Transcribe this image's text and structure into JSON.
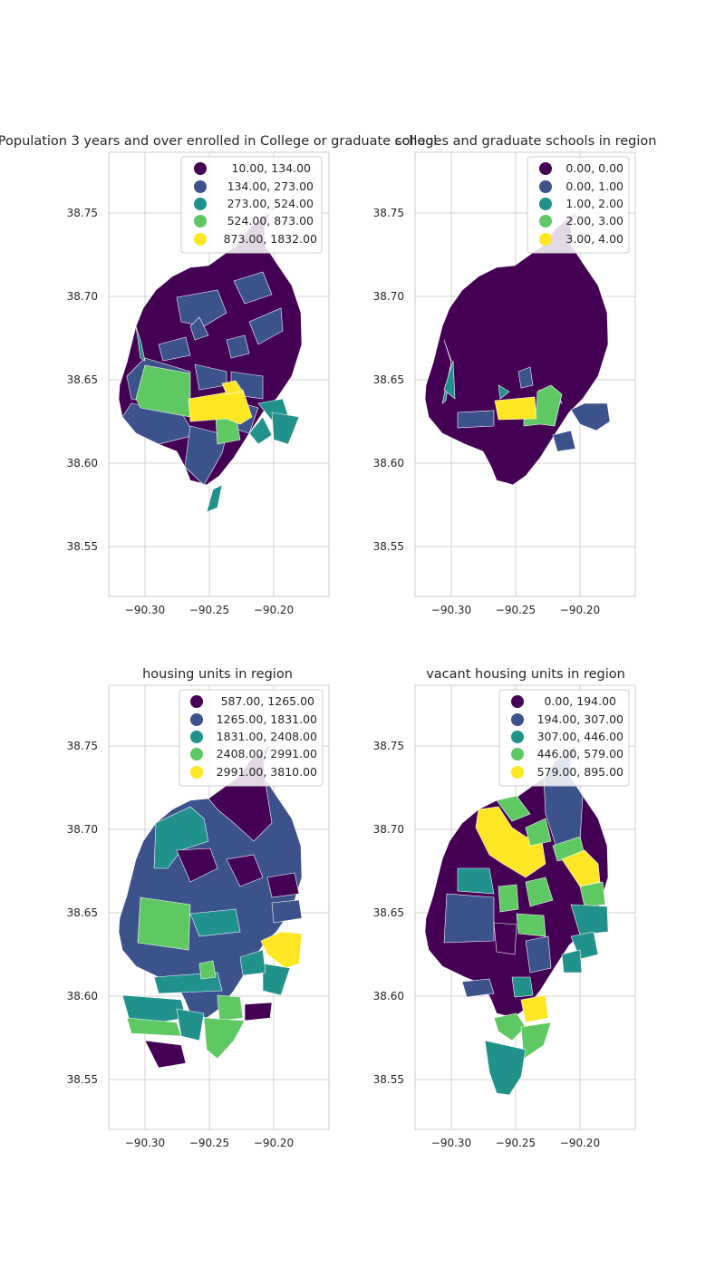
{
  "colors": [
    "#440154",
    "#3b528b",
    "#21918c",
    "#5ec962",
    "#fde725"
  ],
  "panels": [
    {
      "title": "Population 3 years and over enrolled in College or graduate school",
      "legend": [
        "10.00,  134.00",
        "134.00,  273.00",
        "273.00,  524.00",
        "524.00,  873.00",
        "873.00, 1832.00"
      ],
      "xticks": [
        "−90.30",
        "−90.25",
        "−90.20"
      ],
      "yticks": [
        "38.75",
        "38.70",
        "38.65",
        "38.60",
        "38.55"
      ]
    },
    {
      "title": "colleges and graduate schools in region",
      "legend": [
        "0.00, 0.00",
        "0.00, 1.00",
        "1.00, 2.00",
        "2.00, 3.00",
        "3.00, 4.00"
      ],
      "xticks": [
        "−90.30",
        "−90.25",
        "−90.20"
      ],
      "yticks": [
        "38.75",
        "38.70",
        "38.65",
        "38.60",
        "38.55"
      ]
    },
    {
      "title": "housing units in region",
      "legend": [
        "587.00, 1265.00",
        "1265.00, 1831.00",
        "1831.00, 2408.00",
        "2408.00, 2991.00",
        "2991.00, 3810.00"
      ],
      "xticks": [
        "−90.30",
        "−90.25",
        "−90.20"
      ],
      "yticks": [
        "38.75",
        "38.70",
        "38.65",
        "38.60",
        "38.55"
      ]
    },
    {
      "title": "vacant housing units in region",
      "legend": [
        "0.00, 194.00",
        "194.00, 307.00",
        "307.00, 446.00",
        "446.00, 579.00",
        "579.00, 895.00"
      ],
      "xticks": [
        "−90.30",
        "−90.25",
        "−90.20"
      ],
      "yticks": [
        "38.75",
        "38.70",
        "38.65",
        "38.60",
        "38.55"
      ]
    }
  ]
}
